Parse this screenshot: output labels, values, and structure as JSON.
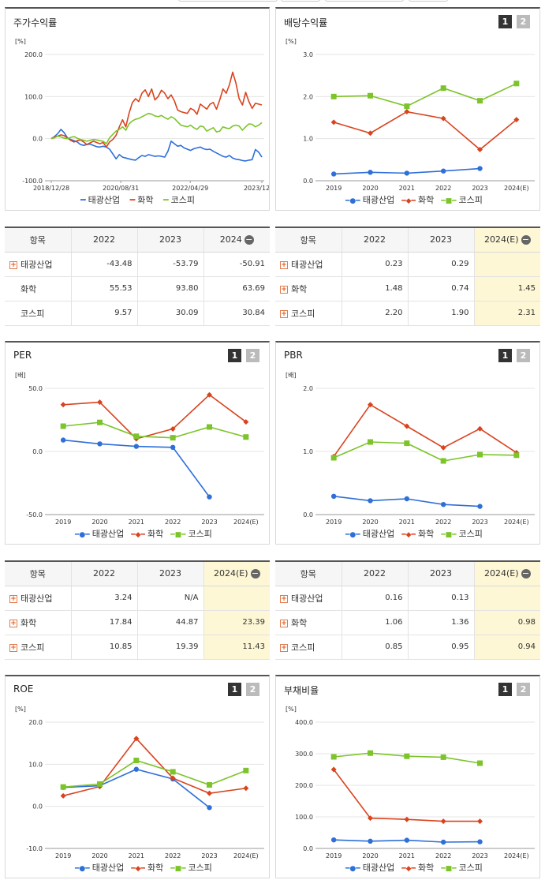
{
  "colors": {
    "taegwang": "#2e6fd8",
    "chem": "#d9431e",
    "kospi": "#7cc42a"
  },
  "panels": {
    "stock": {
      "title": "주가수익률",
      "unit": "[%]"
    },
    "div": {
      "title": "배당수익률",
      "unit": "[%]",
      "b1": "1",
      "b2": "2"
    },
    "per": {
      "title": "PER",
      "unit": "[배]",
      "b1": "1",
      "b2": "2"
    },
    "pbr": {
      "title": "PBR",
      "unit": "[배]",
      "b1": "1",
      "b2": "2"
    },
    "roe": {
      "title": "ROE",
      "unit": "[%]",
      "b1": "1",
      "b2": "2"
    },
    "debt": {
      "title": "부채비율",
      "unit": "[%]",
      "b1": "1",
      "b2": "2"
    }
  },
  "legend": {
    "a": "태광산업",
    "b": "화학",
    "c": "코스피"
  },
  "tables": {
    "stock": {
      "h": [
        "항목",
        "2022",
        "2023",
        "2024"
      ],
      "rows": [
        [
          "태광산업",
          "-43.48",
          "-53.79",
          "-50.91"
        ],
        [
          "화학",
          "55.53",
          "93.80",
          "63.69"
        ],
        [
          "코스피",
          "9.57",
          "30.09",
          "30.84"
        ]
      ]
    },
    "div": {
      "h": [
        "항목",
        "2022",
        "2023",
        "2024(E)"
      ],
      "rows": [
        [
          "태광산업",
          "0.23",
          "0.29",
          ""
        ],
        [
          "화학",
          "1.48",
          "0.74",
          "1.45"
        ],
        [
          "코스피",
          "2.20",
          "1.90",
          "2.31"
        ]
      ]
    },
    "per": {
      "h": [
        "항목",
        "2022",
        "2023",
        "2024(E)"
      ],
      "rows": [
        [
          "태광산업",
          "3.24",
          "N/A",
          ""
        ],
        [
          "화학",
          "17.84",
          "44.87",
          "23.39"
        ],
        [
          "코스피",
          "10.85",
          "19.39",
          "11.43"
        ]
      ]
    },
    "pbr": {
      "h": [
        "항목",
        "2022",
        "2023",
        "2024(E)"
      ],
      "rows": [
        [
          "태광산업",
          "0.16",
          "0.13",
          ""
        ],
        [
          "화학",
          "1.06",
          "1.36",
          "0.98"
        ],
        [
          "코스피",
          "0.85",
          "0.95",
          "0.94"
        ]
      ]
    }
  },
  "chart_data": [
    {
      "id": "stock",
      "type": "line",
      "title": "주가수익률",
      "ylabel": "[%]",
      "ylim": [
        -100,
        200
      ],
      "yticks": [
        "200.0",
        "100.0",
        "0.0",
        "-100.0"
      ],
      "xticks": [
        "2018/12/28",
        "2020/08/31",
        "2022/04/29",
        "2023/12/28"
      ],
      "series": [
        {
          "name": "태광산업",
          "values": [
            0,
            5,
            12,
            22,
            14,
            2,
            -2,
            -5,
            -8,
            -14,
            -16,
            -14,
            -13,
            -16,
            -19,
            -20,
            -18,
            -20,
            -25,
            -36,
            -48,
            -38,
            -44,
            -46,
            -48,
            -50,
            -51,
            -45,
            -40,
            -42,
            -38,
            -40,
            -42,
            -41,
            -42,
            -44,
            -30,
            -6,
            -12,
            -18,
            -16,
            -22,
            -25,
            -28,
            -24,
            -22,
            -20,
            -24,
            -26,
            -25,
            -30,
            -34,
            -38,
            -42,
            -44,
            -40,
            -46,
            -49,
            -50,
            -52,
            -53,
            -51,
            -50,
            -26,
            -32,
            -44
          ]
        },
        {
          "name": "화학",
          "values": [
            0,
            4,
            6,
            9,
            7,
            2,
            -4,
            -8,
            -5,
            -3,
            -8,
            -14,
            -10,
            -6,
            -9,
            -12,
            -9,
            -20,
            -8,
            -2,
            8,
            28,
            45,
            28,
            60,
            85,
            95,
            88,
            108,
            116,
            100,
            118,
            92,
            100,
            115,
            108,
            95,
            104,
            90,
            68,
            64,
            62,
            60,
            72,
            68,
            58,
            82,
            76,
            70,
            82,
            86,
            70,
            92,
            118,
            108,
            128,
            158,
            132,
            95,
            80,
            110,
            88,
            72,
            84,
            82,
            80
          ]
        },
        {
          "name": "코스피",
          "values": [
            0,
            2,
            6,
            4,
            1,
            0,
            3,
            5,
            1,
            -2,
            -4,
            -6,
            -4,
            -2,
            -3,
            -5,
            -6,
            -12,
            2,
            10,
            18,
            22,
            28,
            20,
            35,
            42,
            46,
            48,
            52,
            56,
            60,
            58,
            54,
            52,
            55,
            50,
            46,
            52,
            48,
            40,
            32,
            30,
            28,
            32,
            26,
            22,
            30,
            28,
            18,
            22,
            26,
            16,
            18,
            28,
            25,
            24,
            30,
            32,
            30,
            20,
            28,
            35,
            34,
            28,
            32,
            38
          ]
        }
      ]
    },
    {
      "id": "div",
      "type": "line",
      "title": "배당수익률",
      "ylabel": "[%]",
      "ylim": [
        0,
        3
      ],
      "yticks": [
        "3.0",
        "2.0",
        "1.0",
        "0.0"
      ],
      "categories": [
        "2019",
        "2020",
        "2021",
        "2022",
        "2023",
        "2024(E)"
      ],
      "series": [
        {
          "name": "태광산업",
          "values": [
            0.16,
            0.2,
            0.18,
            0.23,
            0.29,
            null
          ]
        },
        {
          "name": "화학",
          "values": [
            1.39,
            1.13,
            1.64,
            1.48,
            0.74,
            1.45
          ]
        },
        {
          "name": "코스피",
          "values": [
            2.0,
            2.02,
            1.77,
            2.2,
            1.9,
            2.31
          ]
        }
      ]
    },
    {
      "id": "per",
      "type": "line",
      "title": "PER",
      "ylabel": "[배]",
      "ylim": [
        -50,
        50
      ],
      "yticks": [
        "50.0",
        "0.0",
        "-50.0"
      ],
      "categories": [
        "2019",
        "2020",
        "2021",
        "2022",
        "2023",
        "2024(E)"
      ],
      "series": [
        {
          "name": "태광산업",
          "values": [
            9,
            6,
            4,
            3.24,
            -36,
            null
          ]
        },
        {
          "name": "화학",
          "values": [
            37,
            39,
            10,
            17.84,
            44.87,
            23.39
          ]
        },
        {
          "name": "코스피",
          "values": [
            20,
            23,
            12,
            10.85,
            19.39,
            11.43
          ]
        }
      ]
    },
    {
      "id": "pbr",
      "type": "line",
      "title": "PBR",
      "ylabel": "[배]",
      "ylim": [
        0,
        2
      ],
      "yticks": [
        "2.0",
        "1.0",
        "0.0"
      ],
      "categories": [
        "2019",
        "2020",
        "2021",
        "2022",
        "2023",
        "2024(E)"
      ],
      "series": [
        {
          "name": "태광산업",
          "values": [
            0.29,
            0.22,
            0.25,
            0.16,
            0.13,
            null
          ]
        },
        {
          "name": "화학",
          "values": [
            0.92,
            1.74,
            1.4,
            1.06,
            1.36,
            0.98
          ]
        },
        {
          "name": "코스피",
          "values": [
            0.9,
            1.15,
            1.13,
            0.85,
            0.95,
            0.94
          ]
        }
      ]
    },
    {
      "id": "roe",
      "type": "line",
      "title": "ROE",
      "ylabel": "[%]",
      "ylim": [
        -10,
        20
      ],
      "yticks": [
        "20.0",
        "10.0",
        "0.0",
        "-10.0"
      ],
      "categories": [
        "2019",
        "2020",
        "2021",
        "2022",
        "2023",
        "2024(E)"
      ],
      "series": [
        {
          "name": "태광산업",
          "values": [
            4.5,
            4.9,
            8.8,
            6.5,
            -0.3,
            null
          ]
        },
        {
          "name": "화학",
          "values": [
            2.5,
            4.7,
            16.1,
            6.7,
            3.1,
            4.3
          ]
        },
        {
          "name": "코스피",
          "values": [
            4.6,
            5.3,
            10.9,
            8.2,
            5.1,
            8.5
          ]
        }
      ]
    },
    {
      "id": "debt",
      "type": "line",
      "title": "부채비율",
      "ylabel": "[%]",
      "ylim": [
        0,
        400
      ],
      "yticks": [
        "400.0",
        "300.0",
        "200.0",
        "100.0",
        "0.0"
      ],
      "categories": [
        "2019",
        "2020",
        "2021",
        "2022",
        "2023",
        "2024(E)"
      ],
      "series": [
        {
          "name": "태광산업",
          "values": [
            27,
            23,
            26,
            20,
            21,
            null
          ]
        },
        {
          "name": "화학",
          "values": [
            250,
            96,
            92,
            86,
            86,
            null
          ]
        },
        {
          "name": "코스피",
          "values": [
            290,
            302,
            292,
            289,
            270,
            null
          ]
        }
      ]
    }
  ]
}
